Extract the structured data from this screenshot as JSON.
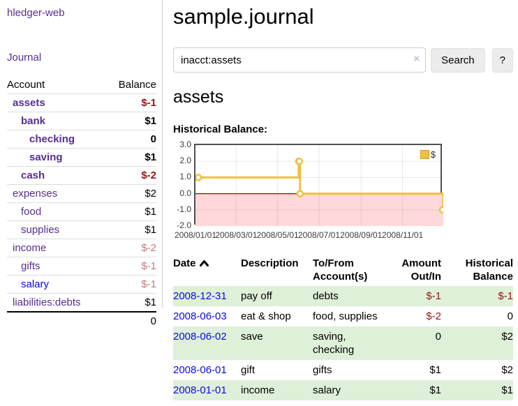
{
  "colors": {
    "link_purple": "#552e91",
    "link_blue": "#0b0bdc",
    "negative_strong": "#941616",
    "negative_muted": "#bf7b7b",
    "stripe_green": "#dff0d8",
    "chart_yellow": "#edc240",
    "chart_pink": "#ffd9d9",
    "zero_line_red": "#a40000"
  },
  "app": {
    "title": "hledger-web"
  },
  "sidebar": {
    "journal_link": "Journal",
    "headers": {
      "account": "Account",
      "balance": "Balance"
    },
    "accounts": [
      {
        "name": "assets",
        "balance": "$-1",
        "depth": 0,
        "matched": true
      },
      {
        "name": "bank",
        "balance": "$1",
        "depth": 1,
        "matched": true
      },
      {
        "name": "checking",
        "balance": "0",
        "depth": 2,
        "matched": true
      },
      {
        "name": "saving",
        "balance": "$1",
        "depth": 2,
        "matched": true
      },
      {
        "name": "cash",
        "balance": "$-2",
        "depth": 1,
        "matched": true
      },
      {
        "name": "expenses",
        "balance": "$2",
        "depth": 0,
        "matched": false
      },
      {
        "name": "food",
        "balance": "$1",
        "depth": 1,
        "matched": false
      },
      {
        "name": "supplies",
        "balance": "$1",
        "depth": 1,
        "matched": false
      },
      {
        "name": "income",
        "balance": "$-2",
        "depth": 0,
        "matched": false
      },
      {
        "name": "gifts",
        "balance": "$-1",
        "depth": 1,
        "matched": false
      },
      {
        "name": "salary",
        "balance": "$-1",
        "depth": 1,
        "matched": false,
        "link_style": "blue"
      },
      {
        "name": "liabilities:debts",
        "balance": "$1",
        "depth": 0,
        "matched": false
      }
    ],
    "total": "0"
  },
  "main": {
    "title": "sample.journal",
    "search": {
      "value": "inacct:assets",
      "clear_icon": "×",
      "button_label": "Search",
      "help_label": "?"
    },
    "account_heading": "assets",
    "chart_label": "Historical Balance:"
  },
  "chart_data": {
    "type": "line",
    "title": "Historical Balance",
    "step": true,
    "x_range": [
      "2008-01-01",
      "2008-12-31"
    ],
    "y_range": [
      -2,
      3
    ],
    "y_ticks": [
      "3.0",
      "2.0",
      "1.0",
      "0.0",
      "-1.0",
      "-2.0"
    ],
    "x_ticks": [
      "2008/01/01",
      "2008/03/01",
      "2008/05/01",
      "2008/07/01",
      "2008/09/01",
      "2008/11/01"
    ],
    "series": [
      {
        "name": "$",
        "color": "#edc240",
        "points": [
          [
            "2008-01-01",
            1
          ],
          [
            "2008-06-01",
            2
          ],
          [
            "2008-06-02",
            2
          ],
          [
            "2008-06-03",
            0
          ],
          [
            "2008-12-31",
            -1
          ]
        ]
      }
    ],
    "legend_position": "top-right",
    "grid": true,
    "negative_region_shaded": true
  },
  "register": {
    "headers": [
      {
        "label": "Date",
        "sorted": "ascending",
        "align": "left"
      },
      {
        "label": "Description",
        "align": "left"
      },
      {
        "label": "To/From Account(s)",
        "align": "left"
      },
      {
        "label": "Amount Out/In",
        "align": "right"
      },
      {
        "label": "Historical Balance",
        "align": "right"
      }
    ],
    "rows": [
      {
        "date": "2008-12-31",
        "description": "pay off",
        "accounts": "debts",
        "amount": "$-1",
        "balance": "$-1"
      },
      {
        "date": "2008-06-03",
        "description": "eat & shop",
        "accounts": "food, supplies",
        "amount": "$-2",
        "balance": "0"
      },
      {
        "date": "2008-06-02",
        "description": "save",
        "accounts": "saving, checking",
        "amount": "0",
        "balance": "$2"
      },
      {
        "date": "2008-06-01",
        "description": "gift",
        "accounts": "gifts",
        "amount": "$1",
        "balance": "$2"
      },
      {
        "date": "2008-01-01",
        "description": "income",
        "accounts": "salary",
        "amount": "$1",
        "balance": "$1"
      }
    ]
  }
}
